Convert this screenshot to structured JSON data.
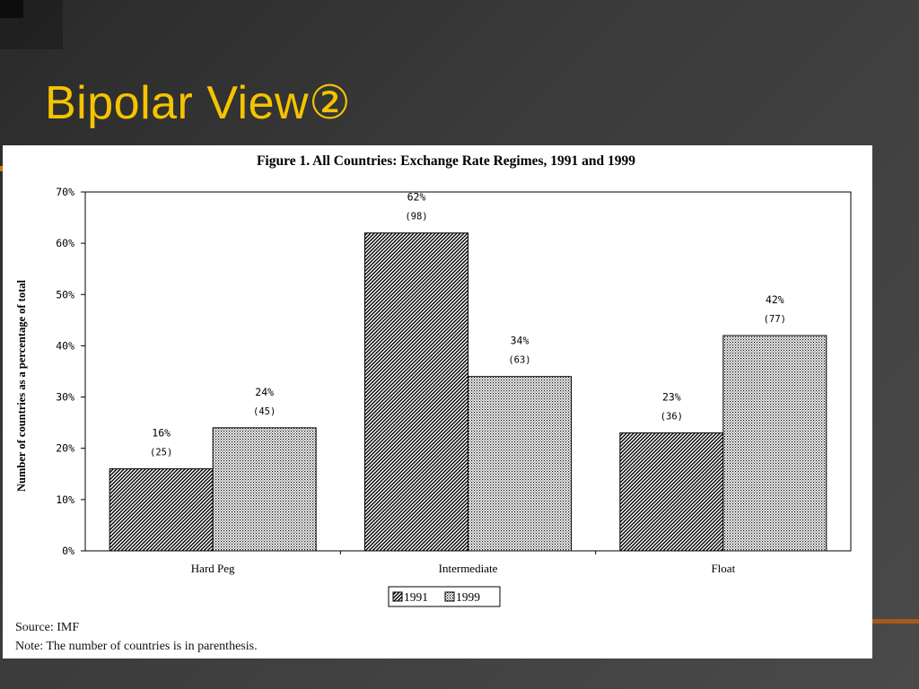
{
  "slide": {
    "title": "Bipolar View②",
    "title_color": "#f5c400"
  },
  "chart_data": {
    "type": "bar",
    "title": "Figure 1. All Countries: Exchange Rate Regimes, 1991 and 1999",
    "ylabel": "Number of countries as a percentage of total",
    "xlabel": "",
    "categories": [
      "Hard Peg",
      "Intermediate",
      "Float"
    ],
    "ylim": [
      0,
      70
    ],
    "yticks": [
      "0%",
      "10%",
      "20%",
      "30%",
      "40%",
      "50%",
      "60%",
      "70%"
    ],
    "series": [
      {
        "name": "1991",
        "pattern": "diagonal-hatch",
        "values": [
          16,
          62,
          23
        ],
        "labels": [
          "16%",
          "62%",
          "23%"
        ],
        "counts": [
          "(25)",
          "(98)",
          "(36)"
        ]
      },
      {
        "name": "1999",
        "pattern": "dotted",
        "values": [
          24,
          34,
          42
        ],
        "labels": [
          "24%",
          "34%",
          "42%"
        ],
        "counts": [
          "(45)",
          "(63)",
          "(77)"
        ]
      }
    ],
    "legend": {
      "placement": "bottom-center"
    },
    "grid": false
  },
  "footnotes": {
    "source": "Source: IMF",
    "note": "Note: The number of countries is in parenthesis."
  }
}
